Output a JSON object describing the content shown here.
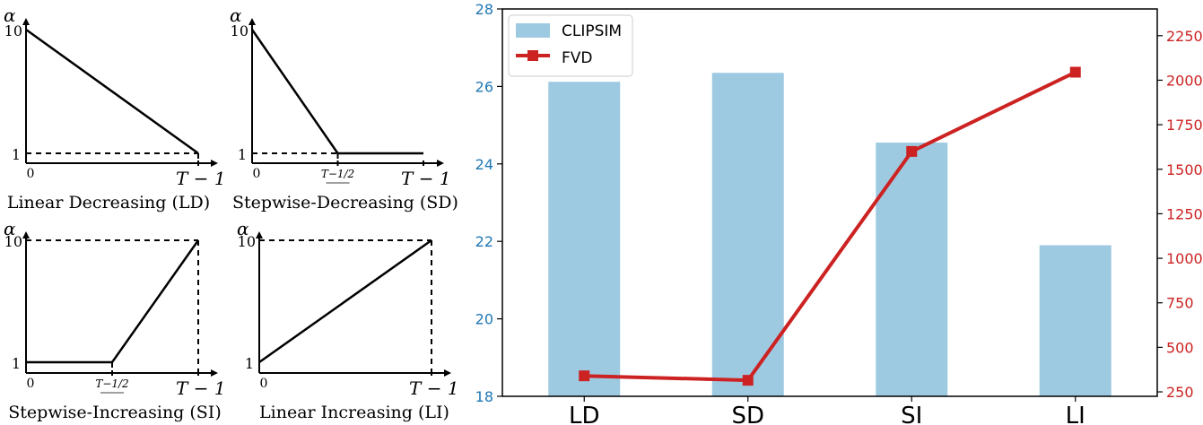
{
  "colors": {
    "bar": "#9ecae1",
    "line": "#cc2222",
    "left_axis": "#1f77b4",
    "right_axis": "#cc2222",
    "schedule": "#000000"
  },
  "chart_data": [
    {
      "type": "line",
      "panel": "schedule-ld",
      "caption": "Linear Decreasing (LD)",
      "ylabel": "α",
      "y_ticks": [
        "1",
        "10"
      ],
      "x_ticks": [
        "0",
        "T − 1"
      ],
      "points": [
        [
          0,
          10
        ],
        [
          1,
          1
        ]
      ]
    },
    {
      "type": "line",
      "panel": "schedule-sd",
      "caption": "Stepwise-Decreasing (SD)",
      "ylabel": "α",
      "y_ticks": [
        "1",
        "10"
      ],
      "x_ticks": [
        "0",
        "T−1/2",
        "T − 1"
      ],
      "points": [
        [
          0,
          10
        ],
        [
          0.5,
          1
        ],
        [
          1,
          1
        ]
      ]
    },
    {
      "type": "line",
      "panel": "schedule-si",
      "caption": "Stepwise-Increasing (SI)",
      "ylabel": "α",
      "y_ticks": [
        "1",
        "10"
      ],
      "x_ticks": [
        "0",
        "T−1/2",
        "T − 1"
      ],
      "points": [
        [
          0,
          1
        ],
        [
          0.5,
          1
        ],
        [
          1,
          10
        ]
      ]
    },
    {
      "type": "line",
      "panel": "schedule-li",
      "caption": "Linear Increasing (LI)",
      "ylabel": "α",
      "y_ticks": [
        "1",
        "10"
      ],
      "x_ticks": [
        "0",
        "T − 1"
      ],
      "points": [
        [
          0,
          1
        ],
        [
          1,
          10
        ]
      ]
    },
    {
      "type": "bar",
      "panel": "comparison",
      "categories": [
        "LD",
        "SD",
        "SI",
        "LI"
      ],
      "series": [
        {
          "name": "CLIPSIM",
          "type": "bar",
          "axis": "left",
          "values": [
            26.12,
            26.35,
            24.55,
            21.9
          ]
        },
        {
          "name": "FVD",
          "type": "line",
          "axis": "right",
          "values": [
            340,
            315,
            1600,
            2045
          ]
        }
      ],
      "ylim_left": [
        18,
        28
      ],
      "yticks_left": [
        18,
        20,
        22,
        24,
        26,
        28
      ],
      "ylim_right": [
        225,
        2400
      ],
      "yticks_right": [
        250,
        500,
        750,
        1000,
        1250,
        1500,
        1750,
        2000,
        2250
      ],
      "legend": "top-left"
    }
  ]
}
